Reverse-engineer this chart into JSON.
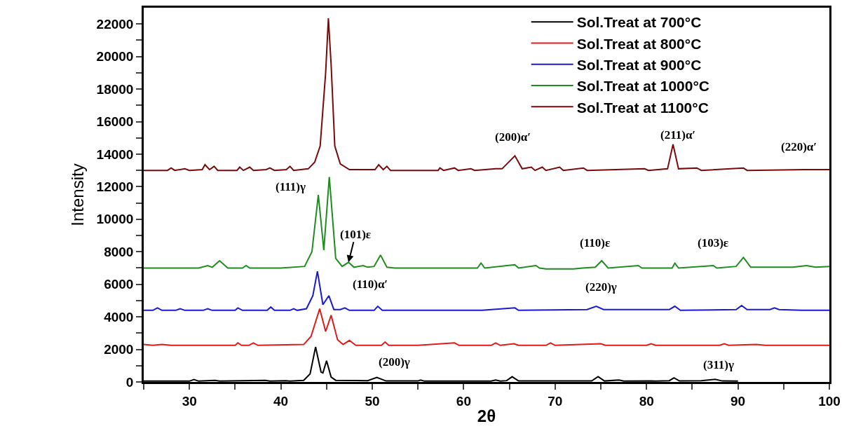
{
  "chart_data": {
    "type": "line",
    "xlabel": "2θ",
    "ylabel": "Intensity",
    "xlim": [
      25,
      100
    ],
    "ylim": [
      0,
      23000
    ],
    "xticks": [
      {
        "value": 25,
        "label": null
      },
      30,
      {
        "value": 35,
        "label": null
      },
      40,
      {
        "value": 45,
        "label": null
      },
      50,
      {
        "value": 55,
        "label": null
      },
      60,
      {
        "value": 65,
        "label": null
      },
      70,
      {
        "value": 75,
        "label": null
      },
      80,
      {
        "value": 85,
        "label": null
      },
      90,
      {
        "value": 95,
        "label": null
      },
      100
    ],
    "yticks": [
      0,
      {
        "value": 1000,
        "label": null
      },
      2000,
      {
        "value": 3000,
        "label": null
      },
      4000,
      {
        "value": 5000,
        "label": null
      },
      6000,
      {
        "value": 7000,
        "label": null
      },
      8000,
      {
        "value": 9000,
        "label": null
      },
      10000,
      {
        "value": 11000,
        "label": null
      },
      12000,
      {
        "value": 13000,
        "label": null
      },
      14000,
      {
        "value": 15000,
        "label": null
      },
      16000,
      {
        "value": 17000,
        "label": null
      },
      18000,
      {
        "value": 19000,
        "label": null
      },
      20000,
      {
        "value": 21000,
        "label": null
      },
      22000
    ],
    "legend": "top right",
    "marker": "none",
    "line_style": "solid",
    "series": [
      {
        "name": "Sol.Treat at 700°C",
        "color": "#000000",
        "x": [
          25,
          30,
          30.5,
          31,
          32.8,
          33.3,
          38.3,
          38.8,
          40.5,
          41,
          42.5,
          43.2,
          43.8,
          44.4,
          44.6,
          45.0,
          45.5,
          46,
          49.5,
          50.5,
          51.5,
          55,
          55.3,
          55.7,
          63,
          63.5,
          64,
          64.7,
          65.3,
          66,
          74,
          74.7,
          75.4,
          77,
          77.5,
          80.5,
          81,
          82.5,
          83,
          83.6,
          86,
          87.5,
          88.3,
          90
        ],
        "values": [
          50,
          50,
          150,
          50,
          100,
          50,
          100,
          50,
          80,
          50,
          100,
          500,
          2150,
          600,
          550,
          1300,
          300,
          100,
          80,
          280,
          60,
          60,
          120,
          50,
          50,
          120,
          50,
          80,
          320,
          60,
          60,
          330,
          60,
          120,
          50,
          60,
          50,
          80,
          250,
          60,
          80,
          160,
          60,
          50
        ]
      },
      {
        "name": "Sol.Treat at 800°C",
        "color": "#e01b1b",
        "x": [
          25,
          26,
          27,
          28,
          35,
          35.3,
          35.7,
          36.5,
          37,
          37.5,
          42.5,
          43.3,
          44.25,
          44.9,
          45.5,
          46.2,
          46.8,
          47.5,
          48.2,
          51,
          51.4,
          51.8,
          55,
          59,
          59.5,
          63,
          63.5,
          64,
          65.5,
          66,
          69,
          69.5,
          70,
          75,
          75.5,
          80,
          80.5,
          81,
          88,
          88.5,
          89,
          92,
          93,
          100
        ],
        "values": [
          2300,
          2250,
          2300,
          2250,
          2250,
          2400,
          2250,
          2250,
          2400,
          2250,
          2300,
          2800,
          4500,
          3100,
          4100,
          2600,
          2300,
          2550,
          2250,
          2250,
          2450,
          2250,
          2250,
          2400,
          2250,
          2250,
          2400,
          2250,
          2350,
          2250,
          2250,
          2400,
          2250,
          2350,
          2250,
          2250,
          2350,
          2250,
          2250,
          2350,
          2250,
          2300,
          2250,
          2250
        ]
      },
      {
        "name": "Sol.Treat at 900°C",
        "color": "#1a1ad4",
        "x": [
          25,
          26,
          26.5,
          27,
          28.5,
          29,
          29.5,
          31.5,
          32,
          32.5,
          35,
          35.3,
          35.8,
          38.5,
          38.9,
          39.3,
          41,
          41.4,
          41.8,
          42.8,
          43.5,
          44.0,
          44.6,
          45.25,
          45.8,
          46.5,
          47,
          47.5,
          50.2,
          50.6,
          51.1,
          62,
          65.6,
          66,
          73.5,
          74.5,
          75.3,
          82.5,
          83.1,
          83.7,
          89.8,
          90.4,
          91,
          93.5,
          94,
          94.5,
          97,
          100
        ],
        "values": [
          4400,
          4400,
          4550,
          4400,
          4400,
          4500,
          4400,
          4400,
          4500,
          4400,
          4400,
          4550,
          4400,
          4400,
          4600,
          4400,
          4400,
          4500,
          4400,
          4500,
          5300,
          6800,
          4750,
          5300,
          4450,
          4450,
          4550,
          4400,
          4400,
          4650,
          4400,
          4400,
          4550,
          4400,
          4450,
          4650,
          4450,
          4450,
          4650,
          4400,
          4450,
          4700,
          4450,
          4450,
          4550,
          4450,
          4400,
          4400
        ]
      },
      {
        "name": "Sol.Treat at 1000°C",
        "color": "#1e8c1e",
        "x": [
          25,
          31,
          32,
          32.5,
          33.3,
          34.2,
          35.8,
          36.2,
          36.6,
          40,
          42.6,
          43.4,
          44.1,
          44.7,
          45.3,
          46,
          46.7,
          47.4,
          48,
          49,
          49.5,
          50.2,
          50.9,
          51.6,
          52.5,
          61.5,
          61.9,
          62.3,
          65.6,
          66,
          67.9,
          68.3,
          69,
          72,
          73,
          74.4,
          75.1,
          75.8,
          79.1,
          79.5,
          82.8,
          83.1,
          83.5,
          87.3,
          87.7,
          89.8,
          90.6,
          91.4,
          96,
          97.5,
          98.5,
          100
        ],
        "values": [
          7000,
          7000,
          7150,
          7050,
          7450,
          7000,
          7000,
          7150,
          7000,
          7000,
          7100,
          8000,
          11500,
          8100,
          12600,
          7600,
          7100,
          7350,
          7050,
          7150,
          7050,
          7100,
          7800,
          7050,
          7000,
          7000,
          7300,
          7000,
          7200,
          7000,
          7150,
          7000,
          6950,
          6950,
          7000,
          7050,
          7450,
          7000,
          7150,
          7000,
          7000,
          7300,
          7000,
          7150,
          7000,
          7100,
          7650,
          7050,
          7050,
          7150,
          7050,
          7100
        ]
      },
      {
        "name": "Sol.Treat at 1100°C",
        "color": "#7a0a0a",
        "x": [
          25,
          27.6,
          28,
          28.4,
          29.5,
          30,
          31.4,
          31.7,
          32.2,
          32.7,
          33.1,
          35.2,
          35.5,
          35.9,
          36.6,
          37,
          38.4,
          38.8,
          39.3,
          40.6,
          41,
          41.4,
          43,
          43.7,
          44.3,
          44.9,
          45.2,
          45.5,
          45.9,
          46.5,
          47.5,
          50.3,
          50.7,
          51.2,
          51.6,
          52,
          57.2,
          57.4,
          57.8,
          59,
          59.4,
          60.8,
          61.2,
          63.5,
          64.2,
          65.6,
          66.4,
          67.4,
          67.8,
          68.6,
          69,
          70.5,
          70.9,
          73.1,
          73.5,
          79.8,
          80.2,
          82.3,
          82.9,
          83.5,
          85.5,
          86,
          90.6,
          91,
          97.3,
          100
        ],
        "values": [
          13000,
          13000,
          13150,
          13000,
          13100,
          13000,
          13050,
          13350,
          13050,
          13250,
          13000,
          13000,
          13200,
          13000,
          13200,
          13000,
          13050,
          13150,
          13000,
          13050,
          13250,
          13000,
          13100,
          13500,
          14500,
          19000,
          22350,
          19500,
          14500,
          13400,
          13050,
          13050,
          13350,
          13050,
          13250,
          13000,
          13000,
          13150,
          13000,
          13150,
          13000,
          13100,
          13000,
          13100,
          13100,
          13900,
          13100,
          13200,
          13000,
          13200,
          13000,
          13200,
          13000,
          13150,
          13000,
          13100,
          13000,
          13100,
          14600,
          13100,
          13150,
          13000,
          13150,
          13000,
          13050,
          13050
        ]
      }
    ],
    "annotations": [
      {
        "text": "(111)γ",
        "x": 44.1,
        "y": 11500
      },
      {
        "text": "(101)ε",
        "x": 47.4,
        "y": 7350
      },
      {
        "text": "(110)ε",
        "x": 75.1,
        "y": 7450
      },
      {
        "text": "(103)ε",
        "x": 87.3,
        "y": 7150
      },
      {
        "text": "(200)α′",
        "x": 65.6,
        "y": 13900
      },
      {
        "text": "(211)α′",
        "x": 82.9,
        "y": 14600
      },
      {
        "text": "(220)α′",
        "x": 97.3,
        "y": 13050
      },
      {
        "text": "(110)α′",
        "x": 45.25,
        "y": 5300
      },
      {
        "text": "(220)γ",
        "x": 74.5,
        "y": 4650
      },
      {
        "text": "(200)γ",
        "x": 50.5,
        "y": 280
      },
      {
        "text": "(311)γ",
        "x": 87.5,
        "y": 160
      }
    ]
  }
}
